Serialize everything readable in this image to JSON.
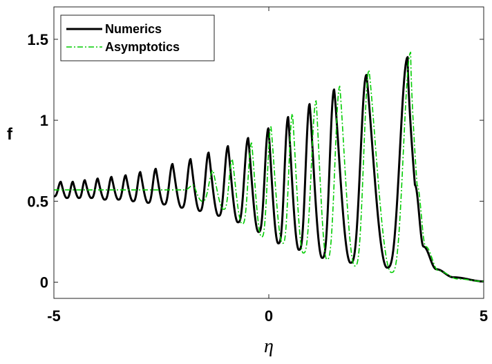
{
  "chart_data": {
    "type": "line",
    "xlabel": "η",
    "ylabel": "f",
    "xlim": [
      -5,
      5
    ],
    "ylim": [
      -0.1,
      1.7
    ],
    "xticks": [
      -5,
      0,
      5
    ],
    "xtick_labels": [
      "-5",
      "0",
      "5"
    ],
    "yticks": [
      0,
      0.5,
      1,
      1.5
    ],
    "ytick_labels": [
      "0",
      "0.5",
      "1",
      "1.5"
    ],
    "grid": false,
    "legend_position": "top-left",
    "series": [
      {
        "name": "Numerics",
        "color": "#000000",
        "style": "solid",
        "peaks": [
          [
            -4.84,
            0.62
          ],
          [
            -4.56,
            0.62
          ],
          [
            -4.28,
            0.63
          ],
          [
            -3.98,
            0.64
          ],
          [
            -3.66,
            0.65
          ],
          [
            -3.33,
            0.66
          ],
          [
            -2.99,
            0.68
          ],
          [
            -2.63,
            0.7
          ],
          [
            -2.24,
            0.73
          ],
          [
            -1.82,
            0.76
          ],
          [
            -1.4,
            0.8
          ],
          [
            -0.95,
            0.84
          ],
          [
            -0.48,
            0.89
          ],
          [
            -0.01,
            0.95
          ],
          [
            0.45,
            1.02
          ],
          [
            0.95,
            1.1
          ],
          [
            1.52,
            1.19
          ],
          [
            2.27,
            1.28
          ],
          [
            3.23,
            1.39
          ]
        ],
        "troughs": [
          [
            -5.0,
            0.53
          ],
          [
            -4.7,
            0.52
          ],
          [
            -4.42,
            0.52
          ],
          [
            -4.13,
            0.52
          ],
          [
            -3.82,
            0.51
          ],
          [
            -3.5,
            0.51
          ],
          [
            -3.16,
            0.5
          ],
          [
            -2.81,
            0.49
          ],
          [
            -2.44,
            0.48
          ],
          [
            -2.03,
            0.46
          ],
          [
            -1.61,
            0.44
          ],
          [
            -1.17,
            0.41
          ],
          [
            -0.72,
            0.37
          ],
          [
            -0.24,
            0.31
          ],
          [
            0.22,
            0.24
          ],
          [
            0.7,
            0.2
          ],
          [
            1.24,
            0.15
          ],
          [
            1.9,
            0.12
          ],
          [
            2.75,
            0.09
          ]
        ],
        "tail": [
          [
            3.23,
            1.39
          ],
          [
            3.4,
            0.6
          ],
          [
            3.6,
            0.22
          ],
          [
            3.9,
            0.08
          ],
          [
            4.3,
            0.03
          ],
          [
            5.0,
            0.005
          ]
        ]
      },
      {
        "name": "Asymptotics",
        "color": "#00cc00",
        "style": "dashdot",
        "flat_value": 0.57,
        "flat_until": -1.95,
        "peaks": [
          [
            -1.75,
            0.6
          ],
          [
            -1.3,
            0.69
          ],
          [
            -0.85,
            0.76
          ],
          [
            -0.4,
            0.86
          ],
          [
            0.05,
            0.96
          ],
          [
            0.55,
            1.04
          ],
          [
            1.1,
            1.12
          ],
          [
            1.65,
            1.21
          ],
          [
            2.33,
            1.31
          ],
          [
            3.3,
            1.42
          ]
        ],
        "troughs": [
          [
            -1.55,
            0.5
          ],
          [
            -1.05,
            0.45
          ],
          [
            -0.62,
            0.36
          ],
          [
            -0.17,
            0.28
          ],
          [
            0.32,
            0.24
          ],
          [
            0.8,
            0.18
          ],
          [
            1.35,
            0.14
          ],
          [
            2.0,
            0.1
          ],
          [
            2.85,
            0.06
          ]
        ],
        "tail": [
          [
            3.3,
            1.42
          ],
          [
            3.45,
            0.6
          ],
          [
            3.65,
            0.22
          ],
          [
            3.95,
            0.07
          ],
          [
            4.4,
            0.02
          ],
          [
            5.0,
            0.005
          ]
        ]
      }
    ]
  }
}
